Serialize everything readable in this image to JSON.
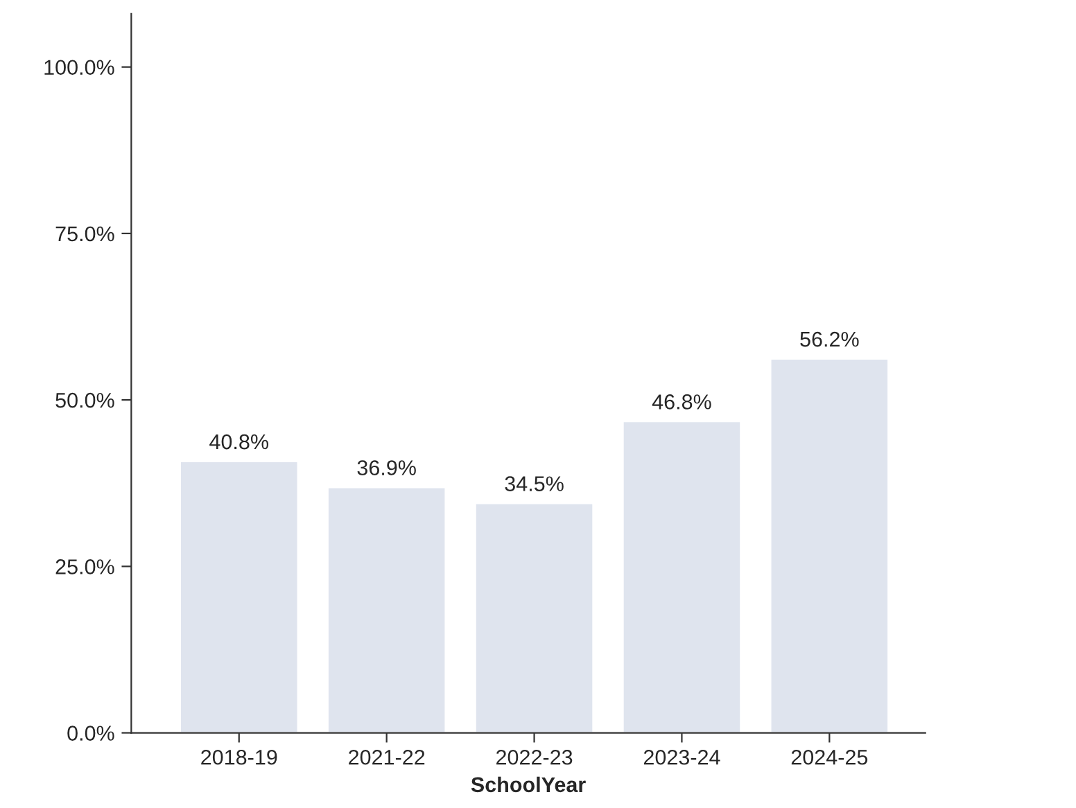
{
  "chart_data": {
    "type": "bar",
    "xlabel": "SchoolYear",
    "categories": [
      "2018-19",
      "2021-22",
      "2022-23",
      "2023-24",
      "2024-25"
    ],
    "values": [
      40.8,
      36.9,
      34.5,
      46.8,
      56.2
    ],
    "value_labels": [
      "40.8%",
      "36.9%",
      "34.5%",
      "46.8%",
      "56.2%"
    ],
    "color": "#dfe4ee",
    "ylim": [
      0,
      108
    ],
    "yticks": [
      {
        "value": 0,
        "label": "0.0%"
      },
      {
        "value": 25,
        "label": "25.0%"
      },
      {
        "value": 50,
        "label": "50.0%"
      },
      {
        "value": 75,
        "label": "75.0%"
      },
      {
        "value": 100,
        "label": "100.0%"
      }
    ],
    "grid": false,
    "legend": false
  }
}
